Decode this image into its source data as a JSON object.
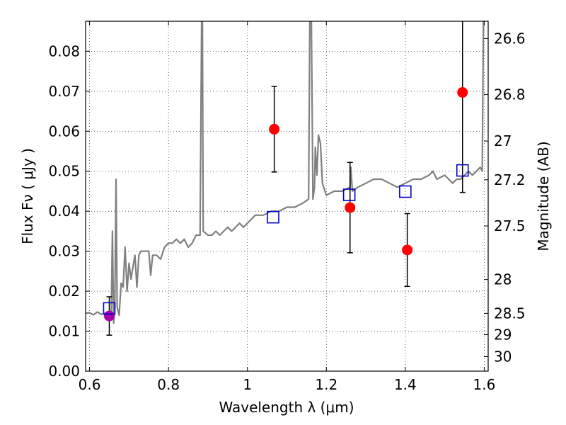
{
  "chart_data": {
    "type": "scatter",
    "title": "",
    "xlabel": "Wavelength  λ (μm)",
    "ylabel": "Flux  Fν  ( μJy )",
    "ylabel_right": "Magnitude (AB)",
    "xlim": [
      0.59,
      1.61
    ],
    "ylim": [
      0.0,
      0.0875
    ],
    "grid": true,
    "x_ticks": [
      "0.6",
      "0.8",
      "1",
      "1.2",
      "1.4",
      "1.6"
    ],
    "y_ticks": [
      "0.00",
      "0.01",
      "0.02",
      "0.03",
      "0.04",
      "0.05",
      "0.06",
      "0.07",
      "0.08"
    ],
    "right_ticks": [
      "26.6",
      "26.8",
      "27",
      "27.2",
      "27.5",
      "28",
      "28.5",
      "29",
      "30"
    ],
    "colors": {
      "model": "#808080",
      "observed": "#ff0000",
      "model_band": "#0000cc",
      "errorbar": "#000000",
      "highlight": "#aa00aa"
    },
    "series": [
      {
        "key": "model_spectrum",
        "kind": "line",
        "points": [
          [
            0.59,
            0.0145
          ],
          [
            0.6,
            0.0146
          ],
          [
            0.61,
            0.0141
          ],
          [
            0.62,
            0.0148
          ],
          [
            0.63,
            0.0142
          ],
          [
            0.64,
            0.0145
          ],
          [
            0.65,
            0.0148
          ],
          [
            0.655,
            0.015
          ],
          [
            0.658,
            0.035
          ],
          [
            0.661,
            0.012
          ],
          [
            0.664,
            0.016
          ],
          [
            0.667,
            0.048
          ],
          [
            0.67,
            0.016
          ],
          [
            0.675,
            0.014
          ],
          [
            0.68,
            0.022
          ],
          [
            0.685,
            0.021
          ],
          [
            0.69,
            0.031
          ],
          [
            0.695,
            0.02
          ],
          [
            0.7,
            0.027
          ],
          [
            0.705,
            0.023
          ],
          [
            0.71,
            0.026
          ],
          [
            0.715,
            0.029
          ],
          [
            0.72,
            0.021
          ],
          [
            0.725,
            0.029
          ],
          [
            0.73,
            0.03
          ],
          [
            0.74,
            0.03
          ],
          [
            0.75,
            0.03
          ],
          [
            0.755,
            0.024
          ],
          [
            0.76,
            0.029
          ],
          [
            0.77,
            0.029
          ],
          [
            0.78,
            0.028
          ],
          [
            0.79,
            0.031
          ],
          [
            0.8,
            0.032
          ],
          [
            0.81,
            0.032
          ],
          [
            0.82,
            0.033
          ],
          [
            0.83,
            0.032
          ],
          [
            0.84,
            0.033
          ],
          [
            0.85,
            0.031
          ],
          [
            0.86,
            0.032
          ],
          [
            0.87,
            0.034
          ],
          [
            0.88,
            0.034
          ],
          [
            0.884,
            0.088
          ],
          [
            0.886,
            0.088
          ],
          [
            0.888,
            0.035
          ],
          [
            0.9,
            0.034
          ],
          [
            0.91,
            0.034
          ],
          [
            0.92,
            0.035
          ],
          [
            0.93,
            0.034
          ],
          [
            0.94,
            0.035
          ],
          [
            0.95,
            0.036
          ],
          [
            0.96,
            0.035
          ],
          [
            0.97,
            0.036
          ],
          [
            0.98,
            0.037
          ],
          [
            0.99,
            0.036
          ],
          [
            1.0,
            0.037
          ],
          [
            1.02,
            0.039
          ],
          [
            1.04,
            0.039
          ],
          [
            1.06,
            0.04
          ],
          [
            1.08,
            0.04
          ],
          [
            1.1,
            0.041
          ],
          [
            1.12,
            0.041
          ],
          [
            1.14,
            0.042
          ],
          [
            1.155,
            0.043
          ],
          [
            1.158,
            0.088
          ],
          [
            1.162,
            0.088
          ],
          [
            1.166,
            0.043
          ],
          [
            1.17,
            0.046
          ],
          [
            1.172,
            0.056
          ],
          [
            1.176,
            0.049
          ],
          [
            1.18,
            0.059
          ],
          [
            1.185,
            0.057
          ],
          [
            1.19,
            0.047
          ],
          [
            1.2,
            0.044
          ],
          [
            1.22,
            0.045
          ],
          [
            1.24,
            0.045
          ],
          [
            1.26,
            0.046
          ],
          [
            1.262,
            0.051
          ],
          [
            1.266,
            0.045
          ],
          [
            1.28,
            0.046
          ],
          [
            1.3,
            0.047
          ],
          [
            1.32,
            0.048
          ],
          [
            1.34,
            0.048
          ],
          [
            1.36,
            0.047
          ],
          [
            1.38,
            0.046
          ],
          [
            1.4,
            0.047
          ],
          [
            1.42,
            0.048
          ],
          [
            1.44,
            0.048
          ],
          [
            1.46,
            0.049
          ],
          [
            1.47,
            0.05
          ],
          [
            1.48,
            0.048
          ],
          [
            1.5,
            0.049
          ],
          [
            1.51,
            0.048
          ],
          [
            1.52,
            0.047
          ],
          [
            1.53,
            0.048
          ],
          [
            1.54,
            0.048
          ],
          [
            1.55,
            0.049
          ],
          [
            1.56,
            0.05
          ],
          [
            1.57,
            0.049
          ],
          [
            1.58,
            0.05
          ],
          [
            1.59,
            0.051
          ],
          [
            1.595,
            0.05
          ],
          [
            1.598,
            0.088
          ],
          [
            1.6,
            0.088
          ],
          [
            1.61,
            0.088
          ]
        ]
      },
      {
        "key": "observed",
        "kind": "points_with_errors",
        "points": [
          {
            "x": 1.068,
            "y": 0.0605,
            "err": 0.0107
          },
          {
            "x": 1.26,
            "y": 0.0409,
            "err": 0.0113
          },
          {
            "x": 1.405,
            "y": 0.0303,
            "err": 0.0091
          },
          {
            "x": 1.545,
            "y": 0.0697,
            "err": 0.025
          }
        ]
      },
      {
        "key": "highlight_point",
        "kind": "points_with_errors",
        "points": [
          {
            "x": 0.65,
            "y": 0.0138,
            "err": 0.0048
          }
        ]
      },
      {
        "key": "model_band_flux",
        "kind": "squares",
        "points": [
          {
            "x": 0.65,
            "y": 0.0157
          },
          {
            "x": 1.065,
            "y": 0.0385
          },
          {
            "x": 1.258,
            "y": 0.0441
          },
          {
            "x": 1.4,
            "y": 0.0449
          },
          {
            "x": 1.545,
            "y": 0.0502
          }
        ]
      }
    ]
  }
}
